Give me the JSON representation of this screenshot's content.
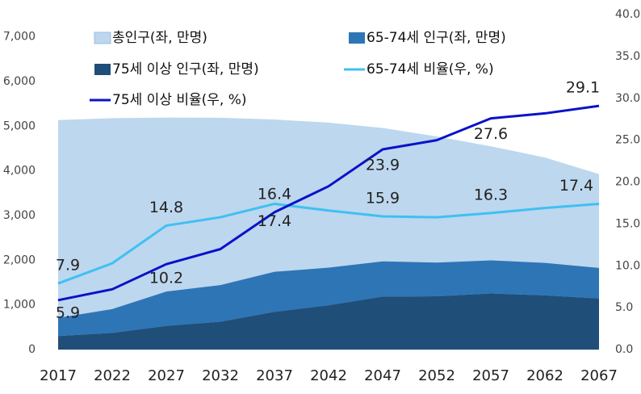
{
  "chart_data": {
    "type": "area",
    "x": [
      2017,
      2022,
      2027,
      2032,
      2037,
      2042,
      2047,
      2052,
      2057,
      2062,
      2067
    ],
    "xlim": [
      2017,
      2067
    ],
    "xticks": [
      2017,
      2022,
      2027,
      2032,
      2037,
      2042,
      2047,
      2052,
      2057,
      2062,
      2067
    ],
    "ylim": [
      0,
      7500
    ],
    "yticks": [
      0,
      {
        "value": 1000,
        "label": "1,000"
      },
      {
        "value": 2000,
        "label": "2,000"
      },
      {
        "value": 3000,
        "label": "3,000"
      },
      {
        "value": 4000,
        "label": "4,000"
      },
      {
        "value": 5000,
        "label": "5,000"
      },
      {
        "value": 6000,
        "label": "6,000"
      },
      {
        "value": 7000,
        "label": "7,000"
      }
    ],
    "y2lim": [
      0,
      40
    ],
    "y2ticks": [
      {
        "value": 0,
        "label": "0.0"
      },
      {
        "value": 5,
        "label": "5.0"
      },
      {
        "value": 10,
        "label": "10.0"
      },
      {
        "value": 15,
        "label": "15.0"
      },
      {
        "value": 20,
        "label": "20.0"
      },
      {
        "value": 25,
        "label": "25.0"
      },
      {
        "value": 30,
        "label": "30.0"
      },
      {
        "value": 35,
        "label": "35.0"
      },
      {
        "value": 40,
        "label": "40.0"
      }
    ],
    "legend": "top-left",
    "series": [
      {
        "name": "총인구(좌, 만명)",
        "type": "area",
        "color": "#bdd7ee",
        "values": [
          5136,
          5180,
          5194,
          5190,
          5150,
          5080,
          4960,
          4770,
          4550,
          4300,
          3929
        ]
      },
      {
        "name": "65-74세 인구(좌, 만명)",
        "type": "area",
        "stacked": true,
        "color": "#2e75b6",
        "values": [
          406,
          534,
          769,
          820,
          896,
          843,
          789,
          754,
          742,
          727,
          684
        ]
      },
      {
        "name": "75세 이상 인구(좌, 만명)",
        "type": "area",
        "stacked": true,
        "color": "#1f4e79",
        "values": [
          303,
          373,
          530,
          623,
          845,
          991,
          1185,
          1193,
          1256,
          1213,
          1143
        ]
      },
      {
        "name": "65-74세 비율(우, %)",
        "type": "line",
        "axis": "y2",
        "color": "#3fc0f2",
        "values": [
          7.9,
          10.3,
          14.8,
          15.8,
          17.4,
          16.6,
          15.9,
          15.8,
          16.3,
          16.9,
          17.4
        ],
        "value_labels": [
          "7.9",
          null,
          "14.8",
          null,
          "17.4",
          null,
          "15.9",
          null,
          "16.3",
          null,
          "17.4"
        ]
      },
      {
        "name": "75세 이상 비율(우, %)",
        "type": "line",
        "axis": "y2",
        "color": "#0a12c8",
        "values": [
          5.9,
          7.2,
          10.2,
          12.0,
          16.4,
          19.5,
          23.9,
          25.0,
          27.6,
          28.2,
          29.1
        ],
        "value_labels": [
          "5.9",
          null,
          "10.2",
          null,
          "16.4",
          null,
          "23.9",
          null,
          "27.6",
          null,
          "29.1"
        ]
      }
    ]
  }
}
